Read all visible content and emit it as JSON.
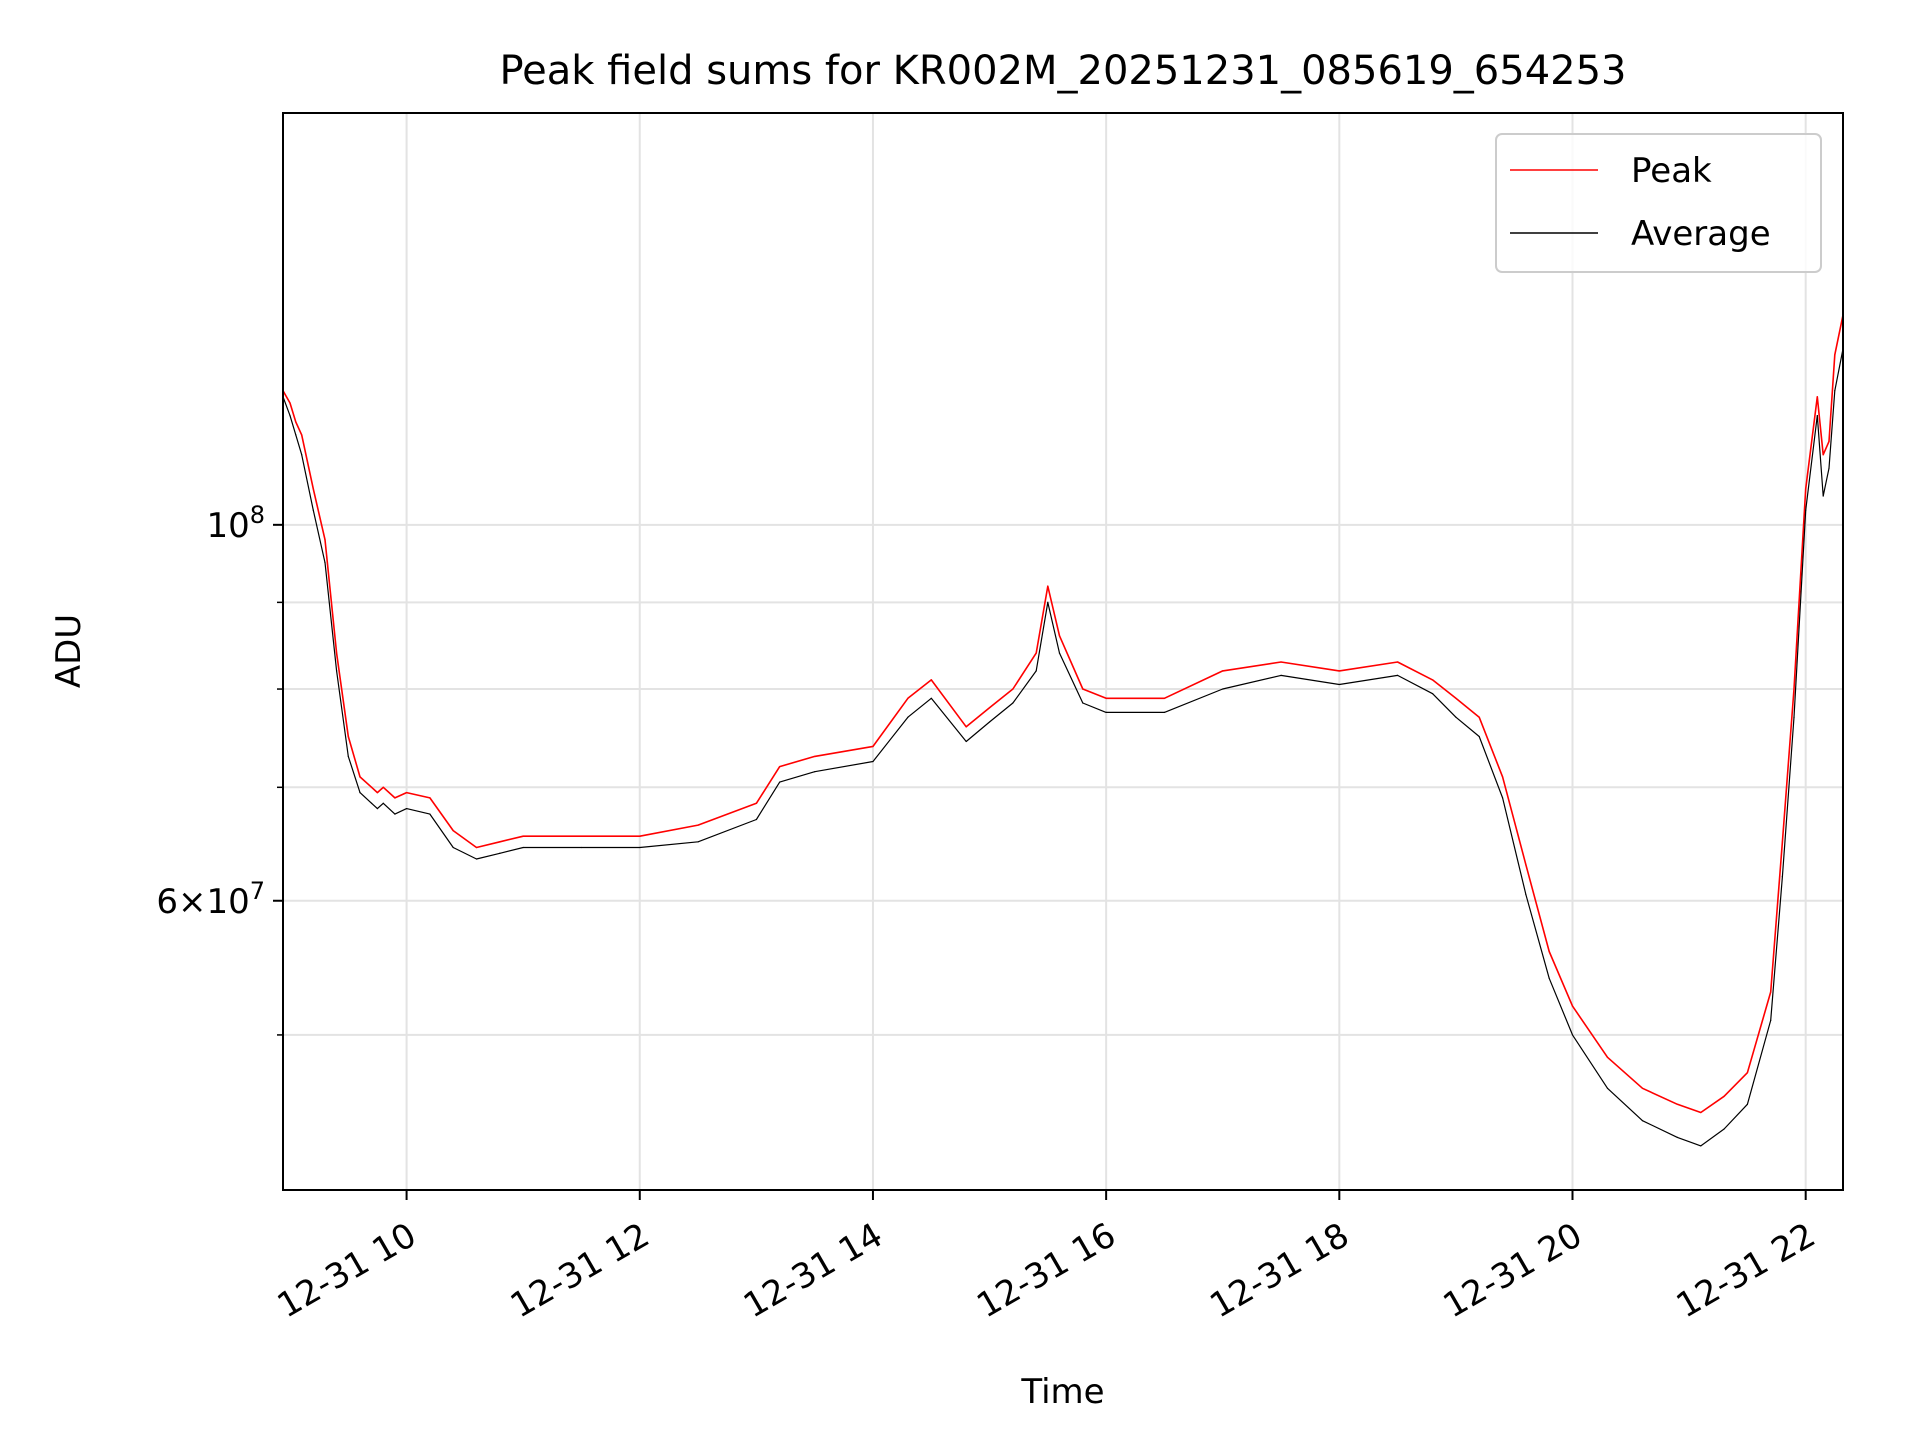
{
  "chart_data": {
    "type": "line",
    "title": "Peak field sums for KR002M_20251231_085619_654253",
    "xlabel": "Time",
    "ylabel": "ADU",
    "x_unit": "hours since 2025-12-31 00:00",
    "xlim": [
      8.94,
      22.32
    ],
    "ylim": [
      40500000,
      175000000
    ],
    "y_scale": "log",
    "grid": true,
    "legend_position": "top-right",
    "x_ticks": [
      {
        "value": 10,
        "label": "12-31 10"
      },
      {
        "value": 12,
        "label": "12-31 12"
      },
      {
        "value": 14,
        "label": "12-31 14"
      },
      {
        "value": 16,
        "label": "12-31 16"
      },
      {
        "value": 18,
        "label": "12-31 18"
      },
      {
        "value": 20,
        "label": "12-31 20"
      },
      {
        "value": 22,
        "label": "12-31 22"
      }
    ],
    "y_major_ticks": [
      {
        "value": 100000000,
        "base": "10",
        "exp": "8",
        "mantissa": ""
      },
      {
        "value": 60000000,
        "base": "10",
        "exp": "7",
        "mantissa": "6"
      }
    ],
    "y_minor_ticks": [
      50000000,
      70000000,
      80000000,
      90000000
    ],
    "series": [
      {
        "name": "Peak",
        "color": "#ff0000",
        "x": [
          8.94,
          9.0,
          9.05,
          9.1,
          9.2,
          9.3,
          9.4,
          9.5,
          9.6,
          9.7,
          9.75,
          9.8,
          9.9,
          10.0,
          10.2,
          10.4,
          10.6,
          10.8,
          11.0,
          11.5,
          12.0,
          12.5,
          13.0,
          13.2,
          13.5,
          14.0,
          14.3,
          14.5,
          14.8,
          15.0,
          15.2,
          15.4,
          15.5,
          15.6,
          15.8,
          16.0,
          16.5,
          17.0,
          17.5,
          18.0,
          18.5,
          18.8,
          19.0,
          19.2,
          19.4,
          19.6,
          19.8,
          20.0,
          20.3,
          20.6,
          20.9,
          21.1,
          21.3,
          21.5,
          21.7,
          21.8,
          21.9,
          22.0,
          22.1,
          22.15,
          22.2,
          22.25,
          22.32
        ],
        "y": [
          120000000,
          118000000,
          115000000,
          113000000,
          105000000,
          98000000,
          84000000,
          75000000,
          71000000,
          70000000,
          69500000,
          70000000,
          69000000,
          69500000,
          69000000,
          66000000,
          64500000,
          65000000,
          65500000,
          65500000,
          65500000,
          66500000,
          68500000,
          72000000,
          73000000,
          74000000,
          79000000,
          81000000,
          76000000,
          78000000,
          80000000,
          84000000,
          92000000,
          86000000,
          80000000,
          79000000,
          79000000,
          82000000,
          83000000,
          82000000,
          83000000,
          81000000,
          79000000,
          77000000,
          71000000,
          63000000,
          56000000,
          52000000,
          48500000,
          46500000,
          45500000,
          45000000,
          46000000,
          47500000,
          53000000,
          65000000,
          80000000,
          105000000,
          119000000,
          110000000,
          112000000,
          126000000,
          133000000
        ]
      },
      {
        "name": "Average",
        "color": "#000000",
        "x": [
          8.94,
          9.0,
          9.05,
          9.1,
          9.2,
          9.3,
          9.4,
          9.5,
          9.6,
          9.7,
          9.75,
          9.8,
          9.9,
          10.0,
          10.2,
          10.4,
          10.6,
          10.8,
          11.0,
          11.5,
          12.0,
          12.5,
          13.0,
          13.2,
          13.5,
          14.0,
          14.3,
          14.5,
          14.8,
          15.0,
          15.2,
          15.4,
          15.5,
          15.6,
          15.8,
          16.0,
          16.5,
          17.0,
          17.5,
          18.0,
          18.5,
          18.8,
          19.0,
          19.2,
          19.4,
          19.6,
          19.8,
          20.0,
          20.3,
          20.6,
          20.9,
          21.1,
          21.3,
          21.5,
          21.7,
          21.8,
          21.9,
          22.0,
          22.1,
          22.15,
          22.2,
          22.25,
          22.32
        ],
        "y": [
          119000000,
          116000000,
          113000000,
          110000000,
          102000000,
          95000000,
          82000000,
          73000000,
          69500000,
          68500000,
          68000000,
          68500000,
          67500000,
          68000000,
          67500000,
          64500000,
          63500000,
          64000000,
          64500000,
          64500000,
          64500000,
          65000000,
          67000000,
          70500000,
          71500000,
          72500000,
          77000000,
          79000000,
          74500000,
          76500000,
          78500000,
          82000000,
          90000000,
          84000000,
          78500000,
          77500000,
          77500000,
          80000000,
          81500000,
          80500000,
          81500000,
          79500000,
          77000000,
          75000000,
          69000000,
          60500000,
          54000000,
          50000000,
          46500000,
          44500000,
          43500000,
          43000000,
          44000000,
          45500000,
          51000000,
          62000000,
          77000000,
          102000000,
          116000000,
          104000000,
          108000000,
          120000000,
          127000000
        ]
      }
    ]
  }
}
